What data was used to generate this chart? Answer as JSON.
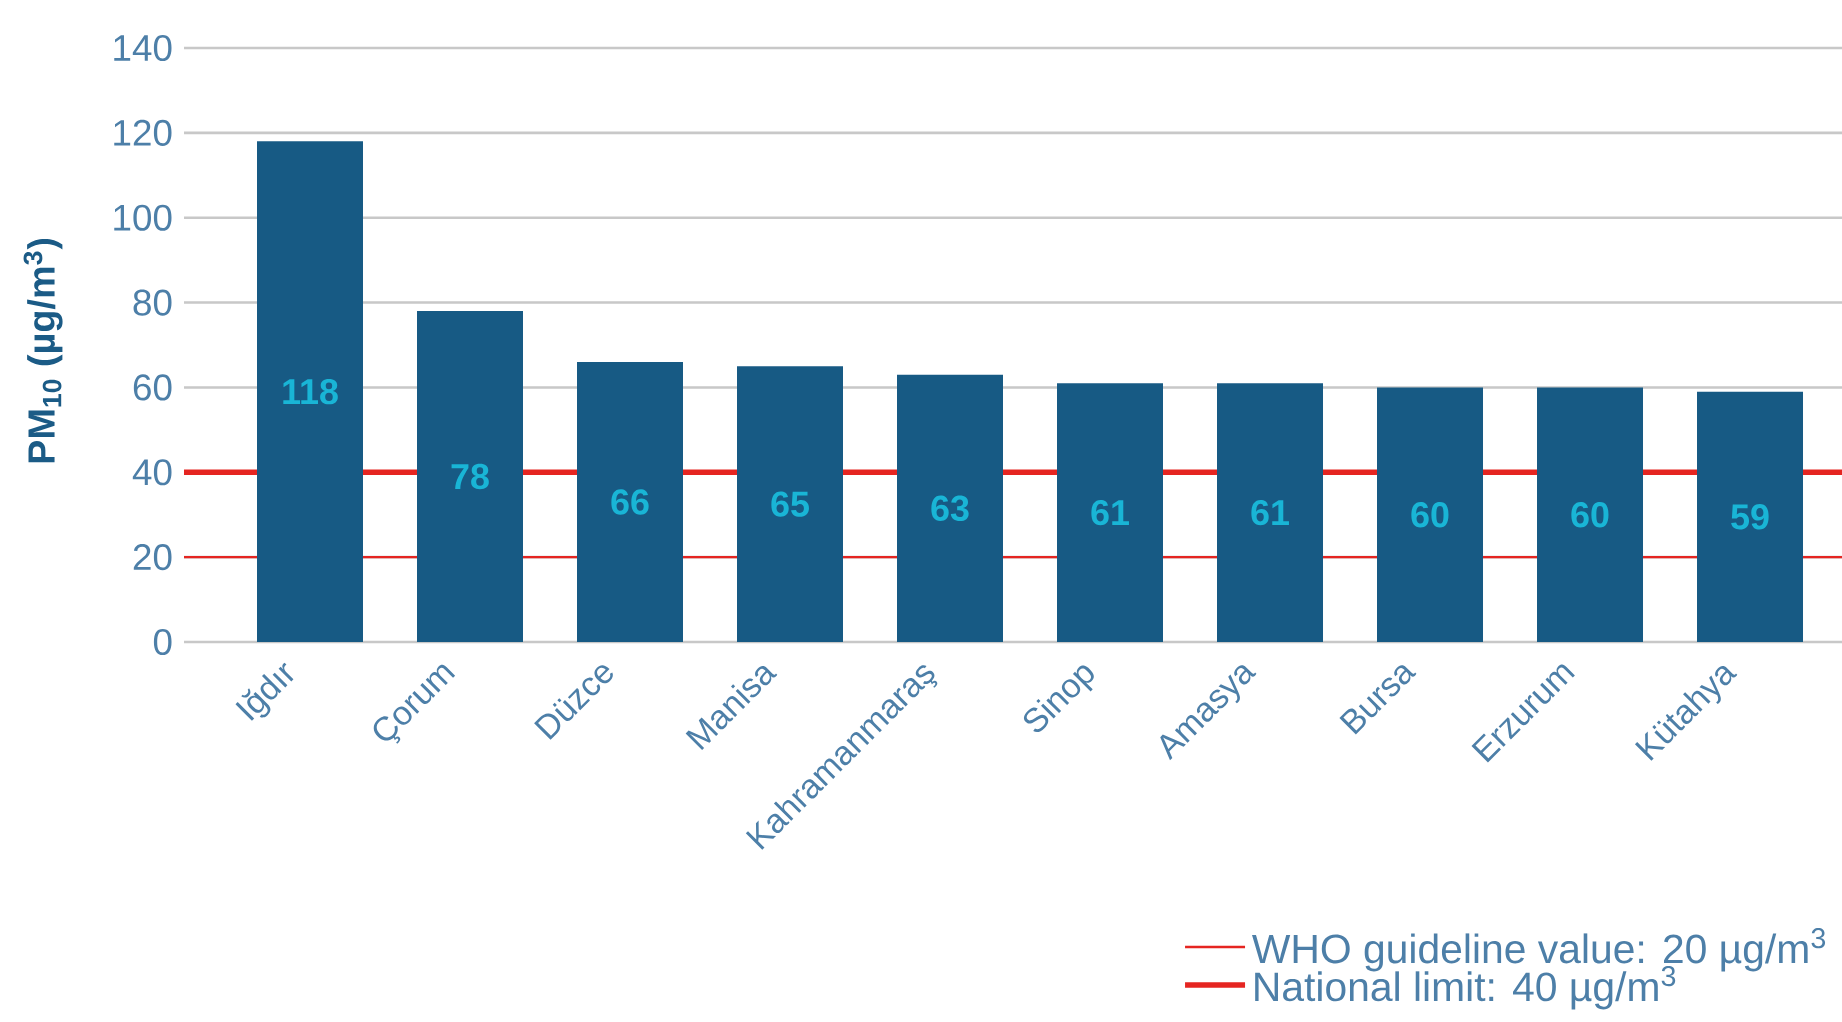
{
  "chart_data": {
    "type": "bar",
    "ylabel": "PM$_{10}$ (µg/m$^{3}$)",
    "categories": [
      "Iğdır",
      "Çorum",
      "Düzce",
      "Manisa",
      "Kahramanmaraş",
      "Sinop",
      "Amasya",
      "Bursa",
      "Erzurum",
      "Kütahya"
    ],
    "values": [
      118,
      78,
      66,
      65,
      63,
      61,
      61,
      60,
      60,
      59
    ],
    "color": "#175a84",
    "ylim": [
      0,
      140
    ],
    "yticks": [
      0,
      20,
      40,
      60,
      80,
      100,
      120,
      140
    ],
    "grid": "y",
    "data_labels": true,
    "legend": "bottom right",
    "ref_lines": [
      {
        "axis": "y",
        "value": 20,
        "label": "WHO guideline value: 20 µg/m$^{3}$",
        "color": "#e52521"
      },
      {
        "axis": "y",
        "value": 40,
        "label": "National limit: 40 µg/m$^{3}$",
        "color": "#e52521"
      }
    ]
  }
}
